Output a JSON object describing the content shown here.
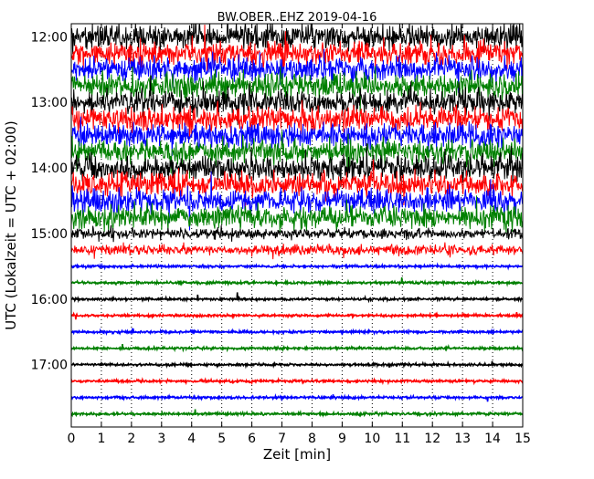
{
  "chart_data": {
    "type": "line",
    "title": "BW.OBER..EHZ 2019-04-16",
    "xlabel": "Zeit  [min]",
    "ylabel": "UTC (Lokalzeit = UTC + 02:00)",
    "xlim": [
      0,
      15
    ],
    "x_ticks": [
      "0",
      "1",
      "2",
      "3",
      "4",
      "5",
      "6",
      "7",
      "8",
      "9",
      "10",
      "11",
      "12",
      "13",
      "14",
      "15"
    ],
    "y_ticks": [
      {
        "label": "12:00",
        "hour": 12.0
      },
      {
        "label": "13:00",
        "hour": 13.0
      },
      {
        "label": "14:00",
        "hour": 14.0
      },
      {
        "label": "15:00",
        "hour": 15.0
      },
      {
        "label": "16:00",
        "hour": 16.0
      },
      {
        "label": "17:00",
        "hour": 17.0
      }
    ],
    "ylim_hours": [
      11.8,
      17.95
    ],
    "grid": "vertical dotted at each minute",
    "trace_colors": [
      "#000000",
      "#ff0000",
      "#0000ff",
      "#008000"
    ],
    "traces": [
      {
        "start": "12:00",
        "amplitude": "high"
      },
      {
        "start": "12:15",
        "amplitude": "high"
      },
      {
        "start": "12:30",
        "amplitude": "high"
      },
      {
        "start": "12:45",
        "amplitude": "high"
      },
      {
        "start": "13:00",
        "amplitude": "high"
      },
      {
        "start": "13:15",
        "amplitude": "high"
      },
      {
        "start": "13:30",
        "amplitude": "high"
      },
      {
        "start": "13:45",
        "amplitude": "high"
      },
      {
        "start": "14:00",
        "amplitude": "high"
      },
      {
        "start": "14:15",
        "amplitude": "high"
      },
      {
        "start": "14:30",
        "amplitude": "high"
      },
      {
        "start": "14:45",
        "amplitude": "high"
      },
      {
        "start": "15:00",
        "amplitude": "medium"
      },
      {
        "start": "15:15",
        "amplitude": "medium"
      },
      {
        "start": "15:30",
        "amplitude": "low"
      },
      {
        "start": "15:45",
        "amplitude": "low"
      },
      {
        "start": "16:00",
        "amplitude": "low"
      },
      {
        "start": "16:15",
        "amplitude": "low"
      },
      {
        "start": "16:30",
        "amplitude": "low"
      },
      {
        "start": "16:45",
        "amplitude": "low"
      },
      {
        "start": "17:00",
        "amplitude": "low"
      },
      {
        "start": "17:15",
        "amplitude": "low"
      },
      {
        "start": "17:30",
        "amplitude": "low"
      },
      {
        "start": "17:45",
        "amplitude": "low"
      }
    ]
  }
}
